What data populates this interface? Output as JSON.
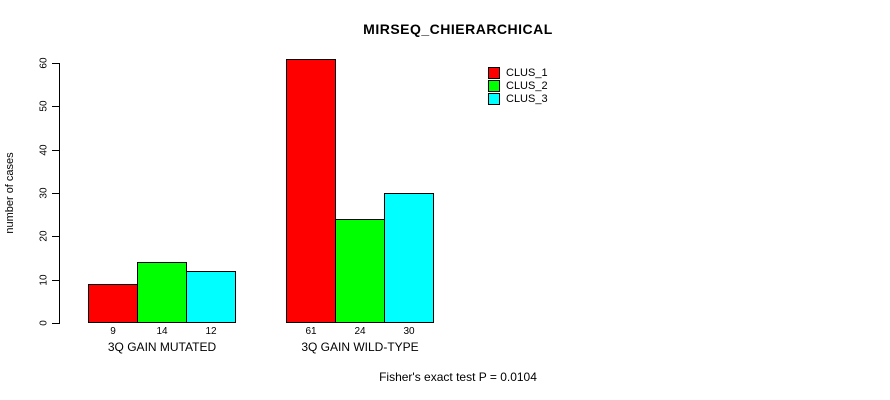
{
  "title": "MIRSEQ_CHIERARCHICAL",
  "footer": "Fisher's exact test P = 0.0104",
  "chart_data": {
    "type": "bar",
    "title": "MIRSEQ_CHIERARCHICAL",
    "xlabel": "",
    "ylabel": "number of cases",
    "categories": [
      "3Q GAIN MUTATED",
      "3Q GAIN WILD-TYPE"
    ],
    "series": [
      {
        "name": "CLUS_1",
        "color": "#ff0000",
        "values": [
          9,
          61
        ]
      },
      {
        "name": "CLUS_2",
        "color": "#00ff00",
        "values": [
          14,
          24
        ]
      },
      {
        "name": "CLUS_3",
        "color": "#00ffff",
        "values": [
          12,
          30
        ]
      }
    ],
    "bar_value_labels": [
      [
        "9",
        "14",
        "12"
      ],
      [
        "61",
        "24",
        "30"
      ]
    ],
    "ylim": [
      0,
      60
    ],
    "yticks": [
      0,
      10,
      20,
      30,
      40,
      50,
      60
    ],
    "grid": false,
    "legend_position": "top-right",
    "annotation": "Fisher's exact test P = 0.0104"
  }
}
